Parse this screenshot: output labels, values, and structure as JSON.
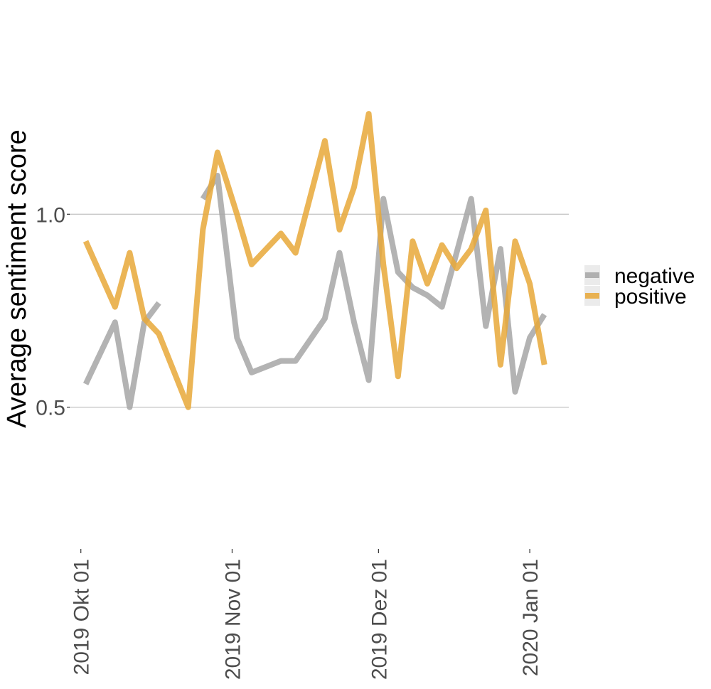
{
  "chart_data": {
    "type": "line",
    "title": "",
    "xlabel": "",
    "ylabel": "Average sentiment score",
    "x_type": "date",
    "x_ticks": [
      "2019-10-01",
      "2019-11-01",
      "2019-12-01",
      "2020-01-01"
    ],
    "x_tick_labels": [
      "2019 Okt 01",
      "2019 Nov 01",
      "2019 Dez 01",
      "2020 Jan 01"
    ],
    "xlim": [
      "2019-09-29",
      "2020-01-09"
    ],
    "y_ticks": [
      0.5,
      1.0
    ],
    "y_tick_labels": [
      "0.5",
      "1.0"
    ],
    "ylim": [
      0.155,
      1.555
    ],
    "grid": "horizontal major lines only",
    "legend_position": "right",
    "legend": [
      "negative",
      "positive"
    ],
    "series": [
      {
        "name": "negative",
        "color": "#a6a6a6",
        "segments": [
          [
            {
              "x": "2019-10-02",
              "y": 0.56
            },
            {
              "x": "2019-10-08",
              "y": 0.72
            },
            {
              "x": "2019-10-11",
              "y": 0.5
            },
            {
              "x": "2019-10-14",
              "y": 0.72
            },
            {
              "x": "2019-10-17",
              "y": 0.77
            }
          ],
          [
            {
              "x": "2019-10-26",
              "y": 1.04
            },
            {
              "x": "2019-10-29",
              "y": 1.1
            },
            {
              "x": "2019-11-02",
              "y": 0.68
            },
            {
              "x": "2019-11-05",
              "y": 0.59
            },
            {
              "x": "2019-11-11",
              "y": 0.62
            },
            {
              "x": "2019-11-14",
              "y": 0.62
            },
            {
              "x": "2019-11-20",
              "y": 0.73
            },
            {
              "x": "2019-11-23",
              "y": 0.9
            },
            {
              "x": "2019-11-26",
              "y": 0.72
            },
            {
              "x": "2019-11-29",
              "y": 0.57
            },
            {
              "x": "2019-12-02",
              "y": 1.04
            },
            {
              "x": "2019-12-05",
              "y": 0.85
            },
            {
              "x": "2019-12-08",
              "y": 0.81
            },
            {
              "x": "2019-12-11",
              "y": 0.79
            },
            {
              "x": "2019-12-14",
              "y": 0.76
            },
            {
              "x": "2019-12-20",
              "y": 1.04
            },
            {
              "x": "2019-12-23",
              "y": 0.71
            },
            {
              "x": "2019-12-26",
              "y": 0.91
            },
            {
              "x": "2019-12-29",
              "y": 0.54
            },
            {
              "x": "2020-01-01",
              "y": 0.68
            },
            {
              "x": "2020-01-04",
              "y": 0.74
            }
          ]
        ]
      },
      {
        "name": "positive",
        "color": "#e8a838",
        "segments": [
          [
            {
              "x": "2019-10-02",
              "y": 0.93
            },
            {
              "x": "2019-10-08",
              "y": 0.76
            },
            {
              "x": "2019-10-11",
              "y": 0.9
            },
            {
              "x": "2019-10-14",
              "y": 0.73
            },
            {
              "x": "2019-10-17",
              "y": 0.69
            },
            {
              "x": "2019-10-23",
              "y": 0.5
            },
            {
              "x": "2019-10-26",
              "y": 0.96
            },
            {
              "x": "2019-10-29",
              "y": 1.16
            },
            {
              "x": "2019-11-02",
              "y": 1.0
            },
            {
              "x": "2019-11-05",
              "y": 0.87
            },
            {
              "x": "2019-11-11",
              "y": 0.95
            },
            {
              "x": "2019-11-14",
              "y": 0.9
            },
            {
              "x": "2019-11-20",
              "y": 1.19
            },
            {
              "x": "2019-11-23",
              "y": 0.96
            },
            {
              "x": "2019-11-26",
              "y": 1.07
            },
            {
              "x": "2019-11-29",
              "y": 1.26
            },
            {
              "x": "2019-12-02",
              "y": 0.87
            },
            {
              "x": "2019-12-05",
              "y": 0.58
            },
            {
              "x": "2019-12-08",
              "y": 0.93
            },
            {
              "x": "2019-12-11",
              "y": 0.82
            },
            {
              "x": "2019-12-14",
              "y": 0.92
            },
            {
              "x": "2019-12-17",
              "y": 0.86
            },
            {
              "x": "2019-12-20",
              "y": 0.91
            },
            {
              "x": "2019-12-23",
              "y": 1.01
            },
            {
              "x": "2019-12-26",
              "y": 0.61
            },
            {
              "x": "2019-12-29",
              "y": 0.93
            },
            {
              "x": "2020-01-01",
              "y": 0.82
            },
            {
              "x": "2020-01-04",
              "y": 0.61
            }
          ]
        ]
      }
    ]
  }
}
